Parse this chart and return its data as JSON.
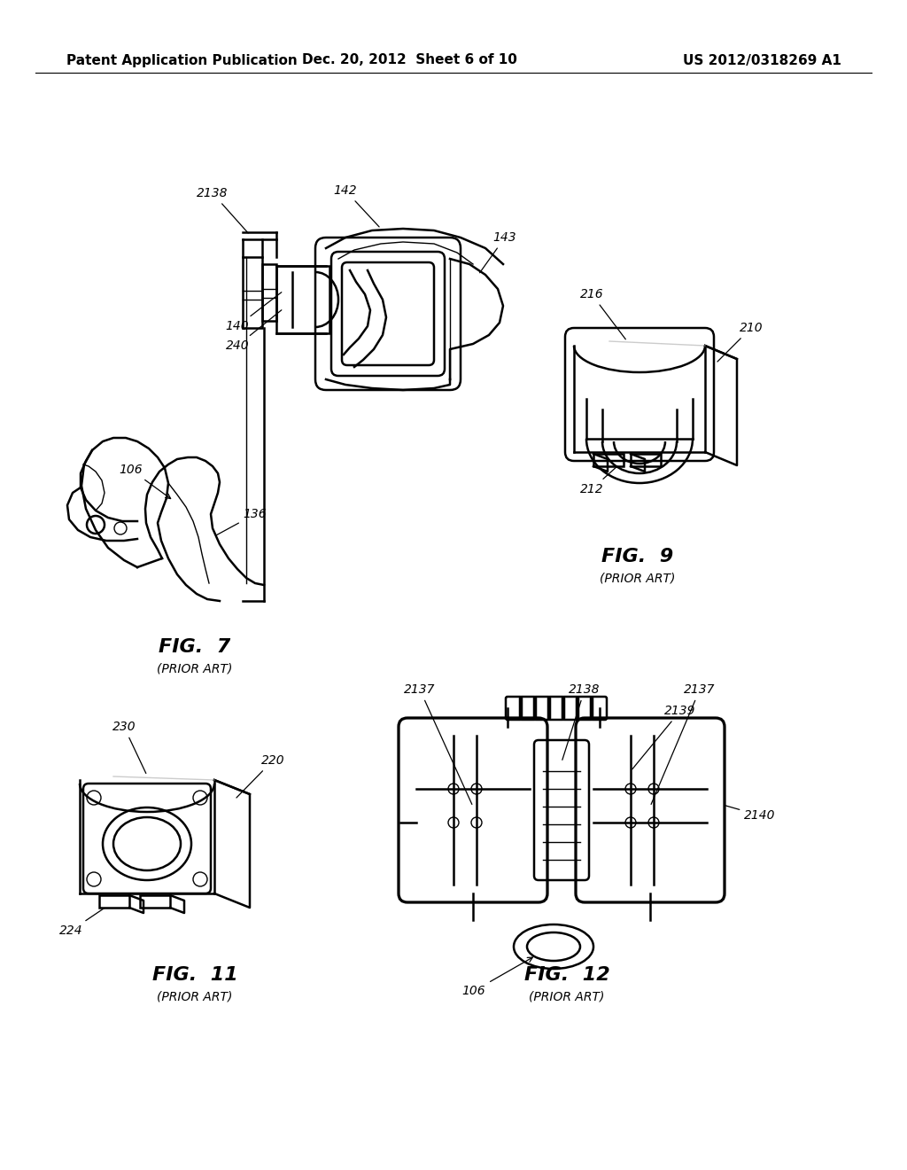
{
  "background_color": "#ffffff",
  "header_left": "Patent Application Publication",
  "header_center": "Dec. 20, 2012  Sheet 6 of 10",
  "header_right": "US 2012/0318269 A1",
  "line_color": "#000000",
  "fig7_caption": "FIG.  7",
  "fig7_subcap": "(PRIOR ART)",
  "fig9_caption": "FIG.  9",
  "fig9_subcap": "(PRIOR ART)",
  "fig11_caption": "FIG.  11",
  "fig11_subcap": "(PRIOR ART)",
  "fig12_caption": "FIG.  12",
  "fig12_subcap": "(PRIOR ART)"
}
